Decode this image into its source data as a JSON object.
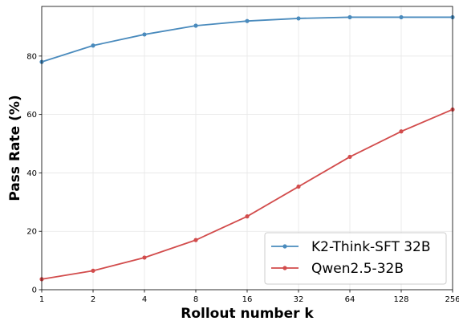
{
  "chart_data": {
    "type": "line",
    "xlabel": "Rollout number k",
    "ylabel": "Pass Rate (%)",
    "x_scale": "log2",
    "x": [
      1,
      2,
      4,
      8,
      16,
      32,
      64,
      128,
      256
    ],
    "x_tick_labels": [
      "1",
      "2",
      "4",
      "8",
      "16",
      "32",
      "64",
      "128",
      "256"
    ],
    "ylim": [
      0,
      97
    ],
    "y_ticks": [
      0,
      20,
      40,
      60,
      80
    ],
    "grid": true,
    "legend_position": "bottom-right",
    "series": [
      {
        "name": "K2-Think-SFT 32B",
        "color": "#4a8bbd",
        "values": [
          78.0,
          83.6,
          87.4,
          90.4,
          92.0,
          92.9,
          93.3,
          93.3,
          93.3
        ]
      },
      {
        "name": "Qwen2.5-32B",
        "color": "#d24c4c",
        "values": [
          3.6,
          6.5,
          11.0,
          17.0,
          25.1,
          35.3,
          45.5,
          54.2,
          61.7
        ]
      }
    ]
  }
}
